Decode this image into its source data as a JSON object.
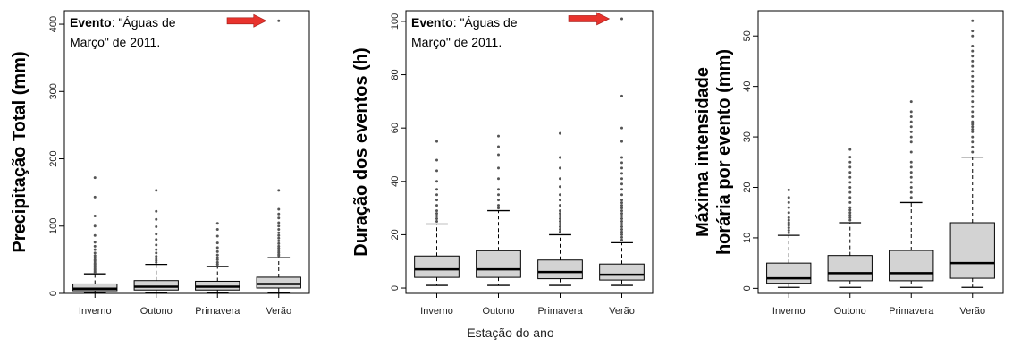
{
  "shared_xlabel": "Estação do ano",
  "annotation_color": "#e8332d",
  "box_fill": "#d3d3d3",
  "chart_data": [
    {
      "type": "boxplot",
      "ylabel": "Precipitação Total (mm)",
      "ylabel_lines": [
        "Precipitação Total (mm)"
      ],
      "ylim": [
        0,
        420
      ],
      "yticks": [
        0,
        100,
        200,
        300,
        400
      ],
      "categories": [
        "Inverno",
        "Outono",
        "Primavera",
        "Verão"
      ],
      "annotation": {
        "bold": "Evento",
        "line1": ": \"Águas de",
        "line2": "Março\" de 2011.",
        "target_category": "Verão",
        "target_value": 405
      },
      "boxes": [
        {
          "whisker_low": 1,
          "q1": 4,
          "median": 7,
          "q3": 14,
          "whisker_high": 29,
          "outliers": [
            31,
            33,
            35,
            37,
            39,
            41,
            43,
            45,
            48,
            50,
            53,
            56,
            60,
            65,
            70,
            76,
            86,
            100,
            115,
            143,
            172
          ]
        },
        {
          "whisker_low": 1,
          "q1": 5,
          "median": 10,
          "q3": 19,
          "whisker_high": 43,
          "outliers": [
            46,
            49,
            52,
            55,
            60,
            65,
            72,
            80,
            88,
            99,
            110,
            122,
            153
          ]
        },
        {
          "whisker_low": 1,
          "q1": 5,
          "median": 10,
          "q3": 18,
          "whisker_high": 40,
          "outliers": [
            43,
            46,
            50,
            53,
            57,
            62,
            68,
            75,
            85,
            95,
            104
          ]
        },
        {
          "whisker_low": 1,
          "q1": 8,
          "median": 14,
          "q3": 24,
          "whisker_high": 53,
          "outliers": [
            56,
            58,
            61,
            64,
            67,
            70,
            74,
            78,
            82,
            86,
            90,
            95,
            100,
            105,
            112,
            118,
            125,
            153,
            405
          ]
        }
      ]
    },
    {
      "type": "boxplot",
      "ylabel": "Duração dos eventos (h)",
      "ylabel_lines": [
        "Duração dos eventos (h)"
      ],
      "ylim": [
        -2,
        104
      ],
      "yticks": [
        0,
        20,
        40,
        60,
        80,
        100
      ],
      "categories": [
        "Inverno",
        "Outono",
        "Primavera",
        "Verão"
      ],
      "annotation": {
        "bold": "Evento",
        "line1": ": \"Águas de",
        "line2": "Março\" de 2011.",
        "target_category": "Verão",
        "target_value": 101
      },
      "boxes": [
        {
          "whisker_low": 1,
          "q1": 4,
          "median": 7,
          "q3": 12,
          "whisker_high": 24,
          "outliers": [
            25,
            26,
            27,
            28,
            29,
            31,
            33,
            35,
            37,
            40,
            44,
            48,
            55
          ]
        },
        {
          "whisker_low": 1,
          "q1": 4,
          "median": 7,
          "q3": 14,
          "whisker_high": 29,
          "outliers": [
            30,
            31,
            33,
            35,
            37,
            41,
            45,
            50,
            53,
            57
          ]
        },
        {
          "whisker_low": 1,
          "q1": 3.5,
          "median": 6,
          "q3": 10.5,
          "whisker_high": 20,
          "outliers": [
            21,
            22,
            23,
            24,
            25,
            26,
            27,
            28,
            29,
            31,
            33,
            35,
            38,
            41,
            45,
            49,
            58
          ]
        },
        {
          "whisker_low": 1,
          "q1": 3,
          "median": 5,
          "q3": 9,
          "whisker_high": 17,
          "outliers": [
            18,
            19,
            20,
            21,
            22,
            23,
            24,
            25,
            26,
            27,
            28,
            29,
            30,
            31,
            32,
            33,
            35,
            37,
            39,
            41,
            43,
            45,
            47,
            49,
            55,
            60,
            72,
            101
          ]
        }
      ]
    },
    {
      "type": "boxplot",
      "ylabel": "Máxima intensidade horária por evento (mm)",
      "ylabel_lines": [
        "Máxima intensidade",
        "horária por evento (mm)"
      ],
      "ylim": [
        -1,
        55
      ],
      "yticks": [
        0,
        10,
        20,
        30,
        40,
        50
      ],
      "categories": [
        "Inverno",
        "Outono",
        "Primavera",
        "Verão"
      ],
      "annotation": null,
      "boxes": [
        {
          "whisker_low": 0.2,
          "q1": 1,
          "median": 2,
          "q3": 5,
          "whisker_high": 10.5,
          "outliers": [
            11,
            11.5,
            12,
            12.5,
            13,
            13.5,
            14,
            15,
            16,
            17,
            18,
            19.5
          ]
        },
        {
          "whisker_low": 0.2,
          "q1": 1.5,
          "median": 3,
          "q3": 6.5,
          "whisker_high": 13,
          "outliers": [
            13.5,
            14,
            14.5,
            15,
            15.5,
            16,
            17,
            18,
            19,
            20,
            21,
            22,
            23,
            24,
            25,
            26,
            27.5
          ]
        },
        {
          "whisker_low": 0.2,
          "q1": 1.5,
          "median": 3,
          "q3": 7.5,
          "whisker_high": 17,
          "outliers": [
            18,
            19,
            20,
            21,
            22,
            23,
            24,
            25,
            27,
            29,
            30,
            31,
            32,
            33,
            34,
            35,
            37
          ]
        },
        {
          "whisker_low": 0.2,
          "q1": 2,
          "median": 5,
          "q3": 13,
          "whisker_high": 26,
          "outliers": [
            27,
            28,
            29,
            30,
            31,
            31.5,
            32,
            32.5,
            33,
            34,
            35,
            36,
            37,
            38,
            39,
            40,
            41,
            42,
            43,
            44,
            45,
            46,
            47,
            48,
            50,
            51,
            53
          ]
        }
      ]
    }
  ]
}
